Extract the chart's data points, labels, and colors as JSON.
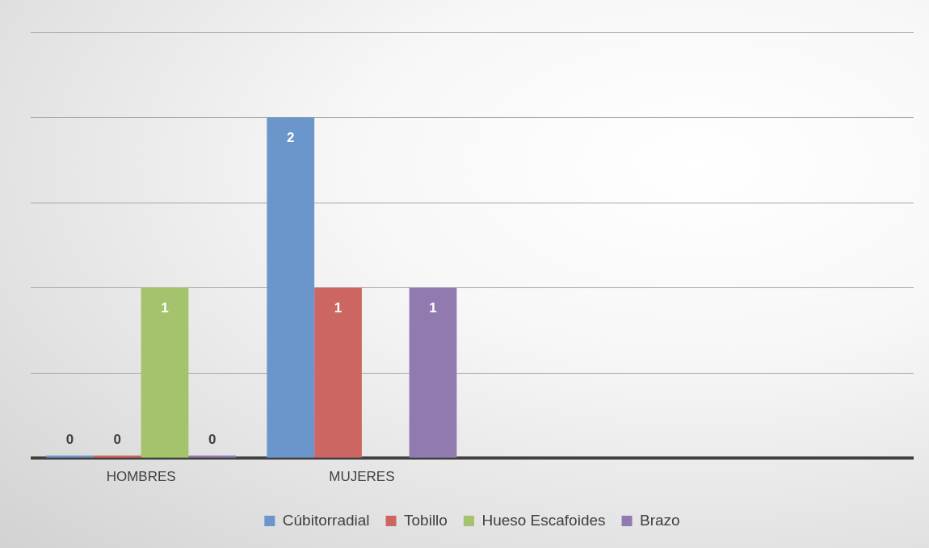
{
  "chart_data": {
    "type": "bar",
    "categories": [
      "HOMBRES",
      "MUJERES",
      null,
      null
    ],
    "series": [
      {
        "name": "Cúbitorradial",
        "color": "#6a96cb",
        "values": [
          0,
          2,
          null,
          null
        ]
      },
      {
        "name": "Tobillo",
        "color": "#cc6663",
        "values": [
          0,
          1,
          null,
          null
        ]
      },
      {
        "name": "Hueso Escafoides",
        "color": "#a5c26c",
        "values": [
          1,
          null,
          null,
          null
        ]
      },
      {
        "name": "Brazo",
        "color": "#917ab0",
        "values": [
          0,
          1,
          null,
          null
        ]
      }
    ],
    "ylim": [
      0,
      2.5
    ],
    "yticks": [
      {
        "value": 0,
        "label": null
      },
      {
        "value": 0.5,
        "label": null
      },
      {
        "value": 1,
        "label": null
      },
      {
        "value": 1.5,
        "label": null
      },
      {
        "value": 2,
        "label": null
      },
      {
        "value": 2.5,
        "label": null
      }
    ],
    "tick_labels": "x",
    "grid": "y",
    "legend": "bottom",
    "data_labels": true
  }
}
